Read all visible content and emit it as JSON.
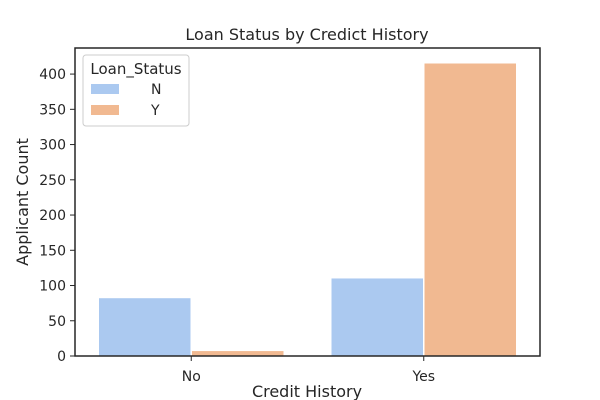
{
  "chart_data": {
    "type": "bar",
    "title": "Loan Status by Credict History",
    "xlabel": "Credit History",
    "ylabel": "Applicant Count",
    "categories": [
      "No",
      "Yes"
    ],
    "series": [
      {
        "name": "N",
        "values": [
          82,
          110
        ],
        "color": "#abc9f0"
      },
      {
        "name": "Y",
        "values": [
          7,
          415
        ],
        "color": "#f1b991"
      }
    ],
    "ylim": [
      0,
      437
    ],
    "yticks": [
      0,
      50,
      100,
      150,
      200,
      250,
      300,
      350,
      400
    ],
    "legend": {
      "title": "Loan_Status",
      "placement": "top-left"
    },
    "grid": false
  }
}
